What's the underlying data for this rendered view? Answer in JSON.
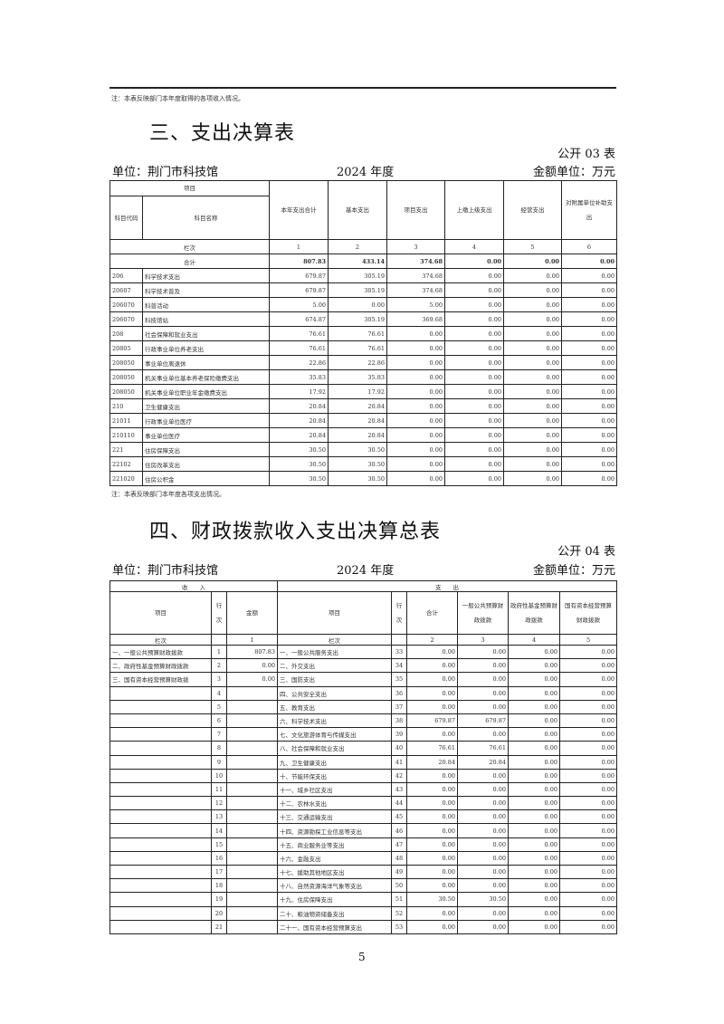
{
  "top_note": "注：本表反映部门本年度取得的各项收入情况。",
  "table3": {
    "title": "三、支出决算表",
    "code": "公开 03 表",
    "unit_label": "单位：荆门市科技馆",
    "year": "2024 年度",
    "amount_unit": "金额单位：万元",
    "headers": {
      "item": "项目",
      "code": "科目代码",
      "name": "科目名称",
      "cols": [
        "本年支出合计",
        "基本支出",
        "项目支出",
        "上缴上级支出",
        "经营支出",
        "对附属单位补助支出"
      ]
    },
    "col_row": {
      "label": "栏次",
      "nums": [
        "1",
        "2",
        "3",
        "4",
        "5",
        "6"
      ]
    },
    "total": {
      "label": "合计",
      "values": [
        "807.83",
        "433.14",
        "374.68",
        "0.00",
        "0.00",
        "0.00"
      ]
    },
    "rows": [
      [
        "206",
        "科学技术支出",
        "679.87",
        "305.19",
        "374.68",
        "0.00",
        "0.00",
        "0.00"
      ],
      [
        "20607",
        "科学技术普及",
        "679.87",
        "305.19",
        "374.68",
        "0.00",
        "0.00",
        "0.00"
      ],
      [
        "206070",
        "科普活动",
        "5.00",
        "0.00",
        "5.00",
        "0.00",
        "0.00",
        "0.00"
      ],
      [
        "206070",
        "科技馆站",
        "674.87",
        "305.19",
        "369.68",
        "0.00",
        "0.00",
        "0.00"
      ],
      [
        "208",
        "社会保障和就业支出",
        "76.61",
        "76.61",
        "0.00",
        "0.00",
        "0.00",
        "0.00"
      ],
      [
        "20805",
        "行政事业单位养老支出",
        "76.61",
        "76.61",
        "0.00",
        "0.00",
        "0.00",
        "0.00"
      ],
      [
        "208050",
        "事业单位离退休",
        "22.86",
        "22.86",
        "0.00",
        "0.00",
        "0.00",
        "0.00"
      ],
      [
        "208050",
        "机关事业单位基本养老保险缴费支出",
        "35.83",
        "35.83",
        "0.00",
        "0.00",
        "0.00",
        "0.00"
      ],
      [
        "208050",
        "机关事业单位职业年金缴费支出",
        "17.92",
        "17.92",
        "0.00",
        "0.00",
        "0.00",
        "0.00"
      ],
      [
        "210",
        "卫生健康支出",
        "20.84",
        "20.84",
        "0.00",
        "0.00",
        "0.00",
        "0.00"
      ],
      [
        "21011",
        "行政事业单位医疗",
        "20.84",
        "20.84",
        "0.00",
        "0.00",
        "0.00",
        "0.00"
      ],
      [
        "210110",
        "事业单位医疗",
        "20.84",
        "20.84",
        "0.00",
        "0.00",
        "0.00",
        "0.00"
      ],
      [
        "221",
        "住房保障支出",
        "30.50",
        "30.50",
        "0.00",
        "0.00",
        "0.00",
        "0.00"
      ],
      [
        "22102",
        "住房改革支出",
        "30.50",
        "30.50",
        "0.00",
        "0.00",
        "0.00",
        "0.00"
      ],
      [
        "221020",
        "住房公积金",
        "30.50",
        "30.50",
        "0.00",
        "0.00",
        "0.00",
        "0.00"
      ]
    ],
    "note": "注：本表反映部门本年度各项支出情况。"
  },
  "table4": {
    "title": "四、财政拨款收入支出决算总表",
    "code": "公开 04 表",
    "unit_label": "单位：荆门市科技馆",
    "year": "2024 年度",
    "amount_unit": "金额单位：万元",
    "headers": {
      "income": "收　　入",
      "expense": "支　　出",
      "item": "项目",
      "line": "行次",
      "amount": "金额",
      "item2": "项目",
      "line2": "行次",
      "cols": [
        "合计",
        "一般公共预算财政拨款",
        "政府性基金预算财政拨款",
        "国有资本经营预算财政拨款"
      ]
    },
    "col_row": {
      "label": "栏次",
      "label2": "栏次",
      "nums": [
        "1",
        "2",
        "3",
        "4",
        "5"
      ]
    },
    "rows": [
      [
        "一、一般公共预算财政拨款",
        "1",
        "807.83",
        "一、一般公共服务支出",
        "33",
        "0.00",
        "0.00",
        "0.00",
        "0.00"
      ],
      [
        "二、政府性基金预算财政拨款",
        "2",
        "0.00",
        "二、外交支出",
        "34",
        "0.00",
        "0.00",
        "0.00",
        "0.00"
      ],
      [
        "三、国有资本经营预算财政拨",
        "3",
        "0.00",
        "三、国防支出",
        "35",
        "0.00",
        "0.00",
        "0.00",
        "0.00"
      ],
      [
        "",
        "4",
        "",
        "四、公共安全支出",
        "36",
        "0.00",
        "0.00",
        "0.00",
        "0.00"
      ],
      [
        "",
        "5",
        "",
        "五、教育支出",
        "37",
        "0.00",
        "0.00",
        "0.00",
        "0.00"
      ],
      [
        "",
        "6",
        "",
        "六、科学技术支出",
        "38",
        "679.87",
        "679.87",
        "0.00",
        "0.00"
      ],
      [
        "",
        "7",
        "",
        "七、文化旅游体育与传媒支出",
        "39",
        "0.00",
        "0.00",
        "0.00",
        "0.00"
      ],
      [
        "",
        "8",
        "",
        "八、社会保障和就业支出",
        "40",
        "76.61",
        "76.61",
        "0.00",
        "0.00"
      ],
      [
        "",
        "9",
        "",
        "九、卫生健康支出",
        "41",
        "20.84",
        "20.84",
        "0.00",
        "0.00"
      ],
      [
        "",
        "10",
        "",
        "十、节能环保支出",
        "42",
        "0.00",
        "0.00",
        "0.00",
        "0.00"
      ],
      [
        "",
        "11",
        "",
        "十一、城乡社区支出",
        "43",
        "0.00",
        "0.00",
        "0.00",
        "0.00"
      ],
      [
        "",
        "12",
        "",
        "十二、农林水支出",
        "44",
        "0.00",
        "0.00",
        "0.00",
        "0.00"
      ],
      [
        "",
        "13",
        "",
        "十三、交通运输支出",
        "45",
        "0.00",
        "0.00",
        "0.00",
        "0.00"
      ],
      [
        "",
        "14",
        "",
        "十四、资源勘探工业信息等支出",
        "46",
        "0.00",
        "0.00",
        "0.00",
        "0.00"
      ],
      [
        "",
        "15",
        "",
        "十五、商业服务业等支出",
        "47",
        "0.00",
        "0.00",
        "0.00",
        "0.00"
      ],
      [
        "",
        "16",
        "",
        "十六、金融支出",
        "48",
        "0.00",
        "0.00",
        "0.00",
        "0.00"
      ],
      [
        "",
        "17",
        "",
        "十七、援助其他地区支出",
        "49",
        "0.00",
        "0.00",
        "0.00",
        "0.00"
      ],
      [
        "",
        "18",
        "",
        "十八、自然资源海洋气象等支出",
        "50",
        "0.00",
        "0.00",
        "0.00",
        "0.00"
      ],
      [
        "",
        "19",
        "",
        "十九、住房保障支出",
        "51",
        "30.50",
        "30.50",
        "0.00",
        "0.00"
      ],
      [
        "",
        "20",
        "",
        "二十、粮油物资储备支出",
        "52",
        "0.00",
        "0.00",
        "0.00",
        "0.00"
      ],
      [
        "",
        "21",
        "",
        "二十一、国有资本经营预算支出",
        "53",
        "0.00",
        "0.00",
        "0.00",
        "0.00"
      ]
    ]
  },
  "page_number": "5"
}
